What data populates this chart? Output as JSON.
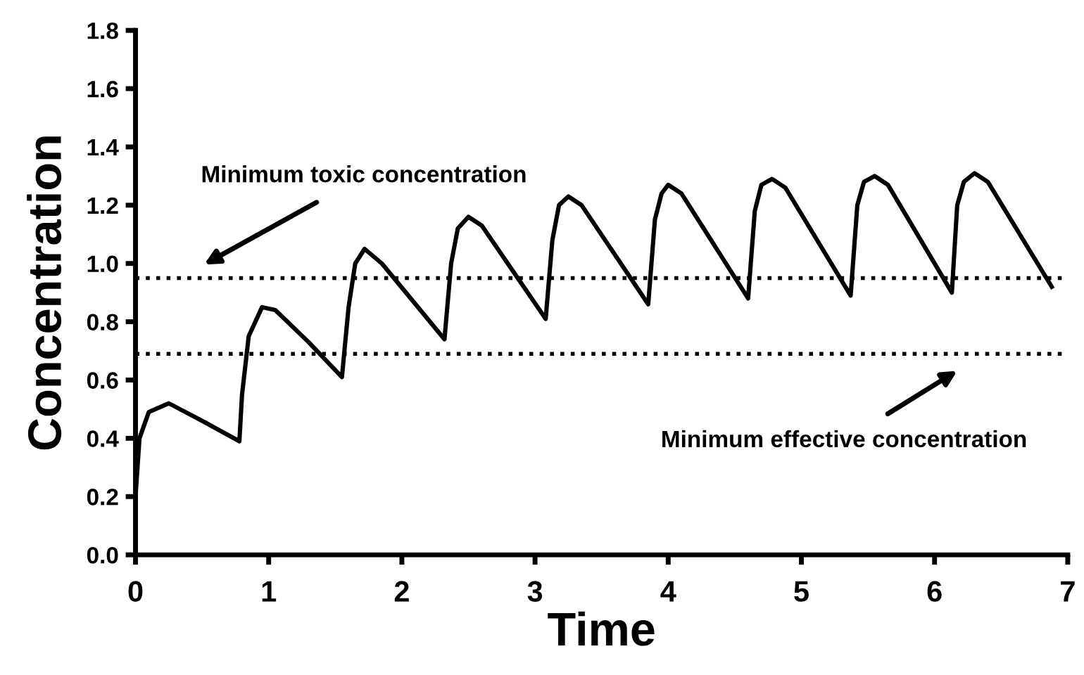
{
  "chart_data": {
    "type": "line",
    "xlabel": "Time",
    "ylabel": "Concentration",
    "xlim": [
      0,
      7
    ],
    "ylim": [
      0.0,
      1.8
    ],
    "xticks": [
      0,
      1,
      2,
      3,
      4,
      5,
      6,
      7
    ],
    "yticks": [
      {
        "value": 0,
        "label": "0.0"
      },
      0.2,
      0.4,
      0.6,
      0.8,
      {
        "value": 1,
        "label": "1.0"
      },
      1.2,
      1.4,
      1.6,
      1.8
    ],
    "grid": false,
    "legend": false,
    "marker": "none",
    "line_style": "solid",
    "series": [
      {
        "color": "#000000",
        "x": [
          0,
          0.03,
          0.1,
          0.25,
          0.5,
          0.78,
          0.8,
          0.85,
          0.95,
          1.05,
          1.3,
          1.55,
          1.6,
          1.65,
          1.72,
          1.85,
          2.32,
          2.37,
          2.42,
          2.5,
          2.6,
          3.08,
          3.13,
          3.18,
          3.25,
          3.35,
          3.85,
          3.9,
          3.95,
          4.0,
          4.1,
          4.6,
          4.65,
          4.7,
          4.78,
          4.88,
          5.37,
          5.42,
          5.47,
          5.55,
          5.65,
          6.13,
          6.17,
          6.22,
          6.3,
          6.4,
          6.88
        ],
        "values": [
          0.2,
          0.4,
          0.49,
          0.52,
          0.46,
          0.39,
          0.55,
          0.75,
          0.85,
          0.84,
          0.73,
          0.61,
          0.85,
          1.0,
          1.05,
          1.0,
          0.74,
          1.0,
          1.12,
          1.16,
          1.13,
          0.81,
          1.08,
          1.2,
          1.23,
          1.2,
          0.86,
          1.15,
          1.24,
          1.27,
          1.24,
          0.88,
          1.18,
          1.27,
          1.29,
          1.26,
          0.89,
          1.2,
          1.28,
          1.3,
          1.27,
          0.9,
          1.2,
          1.28,
          1.31,
          1.28,
          0.92
        ]
      }
    ],
    "ref_lines": [
      {
        "axis": "y",
        "value": 0.95,
        "color": "#000000",
        "line_style": "dotted"
      },
      {
        "axis": "y",
        "value": 0.69,
        "color": "#000000",
        "line_style": "dotted"
      }
    ],
    "annotations": [
      "Minimum toxic concentration",
      "Minimum effective concentration"
    ]
  }
}
